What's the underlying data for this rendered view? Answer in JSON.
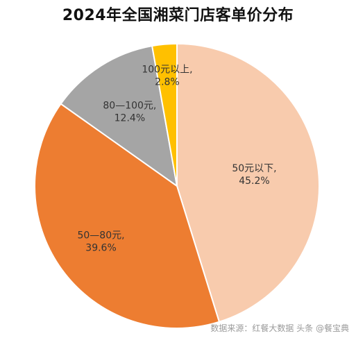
{
  "chart_data": {
    "type": "pie",
    "title": "2024年全国湘菜门店客单价分布",
    "slices": [
      {
        "category": "50元以下",
        "value": 45.2,
        "percent_label": "45.2%",
        "color": "#F8CBAD"
      },
      {
        "category": "50—80元",
        "value": 39.6,
        "percent_label": "39.6%",
        "color": "#ED7D31"
      },
      {
        "category": "80—100元",
        "value": 12.4,
        "percent_label": "12.4%",
        "color": "#A5A5A5"
      },
      {
        "category": "100元以上",
        "value": 2.8,
        "percent_label": "2.8%",
        "color": "#FFC000"
      }
    ],
    "start_angle_deg": 0,
    "direction": "clockwise",
    "legend": "none"
  },
  "footer": {
    "source_text": "数据来源：红餐大数据  头条 @餐宝典"
  }
}
